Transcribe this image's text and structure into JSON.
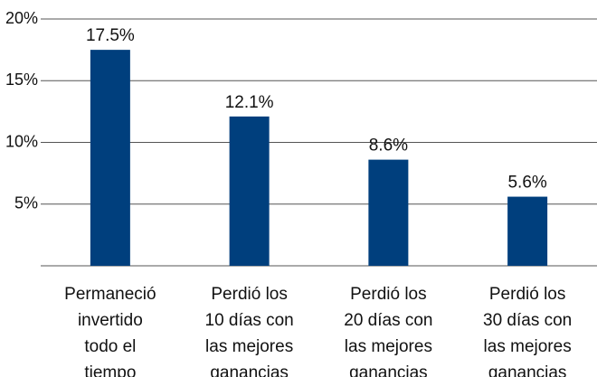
{
  "chart_data": {
    "type": "bar",
    "categories": [
      [
        "Permaneció",
        "invertido",
        "todo el",
        "tiempo"
      ],
      [
        "Perdió los",
        "10 días con",
        "las mejores",
        "ganancias"
      ],
      [
        "Perdió los",
        "20 días con",
        "las mejores",
        "ganancias"
      ],
      [
        "Perdió los",
        "30 días con",
        "las mejores",
        "ganancias"
      ]
    ],
    "values": [
      17.5,
      12.1,
      8.6,
      5.6
    ],
    "value_labels": [
      "17.5%",
      "12.1%",
      "8.6%",
      "5.6%"
    ],
    "color": "#003f7d",
    "ylim": [
      0,
      20
    ],
    "yticks": [
      {
        "value": 5,
        "label": "5%"
      },
      {
        "value": 10,
        "label": "10%"
      },
      {
        "value": 15,
        "label": "15%"
      },
      {
        "value": 20,
        "label": "20%"
      }
    ],
    "grid": true
  }
}
